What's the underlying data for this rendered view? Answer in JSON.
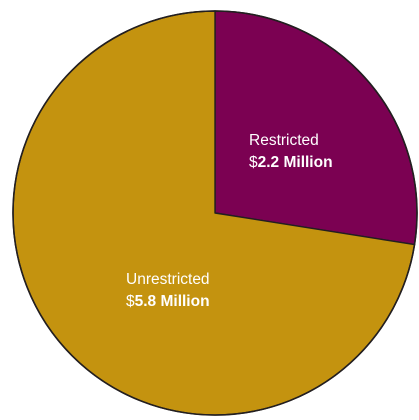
{
  "chart_data": {
    "type": "pie",
    "start_angle_deg": 0,
    "direction": "clockwise",
    "slices": [
      {
        "label": "Restricted",
        "currency": "$",
        "amount_text": "2.2 Million",
        "value": 2.2,
        "color": "#7b0152"
      },
      {
        "label": "Unrestricted",
        "currency": "$",
        "amount_text": "5.8 Million",
        "value": 5.8,
        "color": "#c4930f"
      }
    ]
  },
  "colors": {
    "outline": "#231f20",
    "label_text": "#ffffff"
  }
}
